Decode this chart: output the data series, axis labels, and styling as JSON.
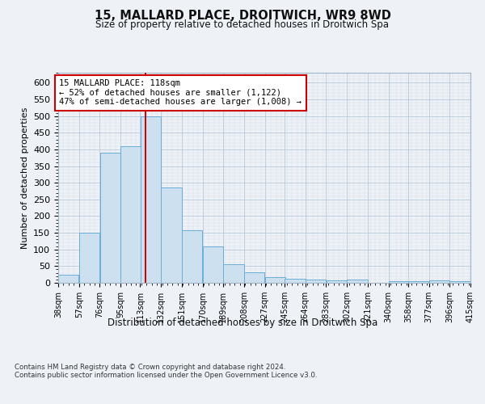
{
  "title": "15, MALLARD PLACE, DROITWICH, WR9 8WD",
  "subtitle": "Size of property relative to detached houses in Droitwich Spa",
  "xlabel": "Distribution of detached houses by size in Droitwich Spa",
  "ylabel": "Number of detached properties",
  "bar_color": "#cce0f0",
  "bar_edge_color": "#6aaed6",
  "property_line_color": "#cc0000",
  "property_value": 118,
  "annotation_text": "15 MALLARD PLACE: 118sqm\n← 52% of detached houses are smaller (1,122)\n47% of semi-detached houses are larger (1,008) →",
  "annotation_box_color": "#ffffff",
  "annotation_box_edge": "#cc0000",
  "bins": [
    38,
    57,
    76,
    95,
    113,
    132,
    151,
    170,
    189,
    208,
    227,
    245,
    264,
    283,
    302,
    321,
    340,
    358,
    377,
    396,
    415
  ],
  "heights": [
    25,
    150,
    390,
    410,
    500,
    285,
    158,
    108,
    55,
    32,
    18,
    13,
    10,
    8,
    10,
    0,
    5,
    5,
    7,
    5
  ],
  "ylim": [
    0,
    630
  ],
  "yticks": [
    0,
    50,
    100,
    150,
    200,
    250,
    300,
    350,
    400,
    450,
    500,
    550,
    600
  ],
  "footer_text": "Contains HM Land Registry data © Crown copyright and database right 2024.\nContains public sector information licensed under the Open Government Licence v3.0.",
  "background_color": "#eef2f7",
  "plot_bg_color": "#eef2f7",
  "grid_major_color": "#b8c8d8",
  "grid_minor_color": "#d0dce8"
}
